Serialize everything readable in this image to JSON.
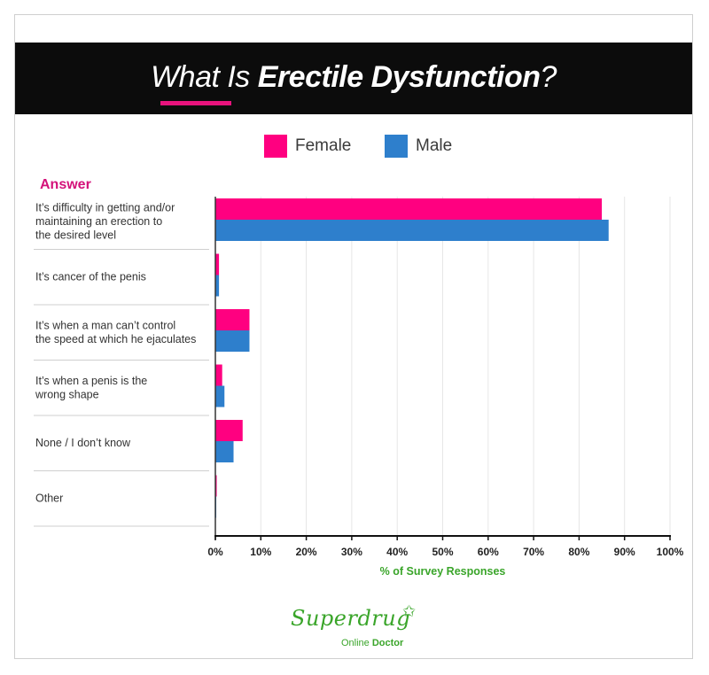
{
  "header": {
    "title_prefix": "What Is ",
    "title_bold": "Erectile Dysfunction",
    "title_suffix": "?"
  },
  "legend": {
    "female_label": "Female",
    "male_label": "Male"
  },
  "colors": {
    "female": "#ff0080",
    "male": "#2e7fcc",
    "accent": "#e8137d",
    "axis_title": "#3aa52a",
    "banner": "#0c0c0c"
  },
  "chart_data": {
    "type": "bar",
    "orientation": "horizontal",
    "row_header": "Answer",
    "categories": [
      [
        "It’s difficulty in getting and/or",
        "maintaining an erection to",
        "the desired level"
      ],
      [
        "It’s cancer of the penis"
      ],
      [
        "It’s when a man can’t control",
        "the speed at which he ejaculates"
      ],
      [
        "It’s when a penis is the",
        "wrong shape"
      ],
      [
        "None / I don’t know"
      ],
      [
        "Other"
      ]
    ],
    "series": [
      {
        "name": "Female",
        "values": [
          85,
          0.8,
          7.5,
          1.5,
          6,
          0.3
        ]
      },
      {
        "name": "Male",
        "values": [
          86.5,
          0.8,
          7.5,
          2,
          4,
          0.2
        ]
      }
    ],
    "xlim": [
      0,
      100
    ],
    "xticks": [
      "0%",
      "10%",
      "20%",
      "30%",
      "40%",
      "50%",
      "60%",
      "70%",
      "80%",
      "90%",
      "100%"
    ],
    "xlabel": "% of Survey Responses",
    "grid": true,
    "legend_position": "top"
  },
  "logo": {
    "brand": "Superdrug",
    "sub_prefix": "Online ",
    "sub_bold": "Doctor"
  }
}
